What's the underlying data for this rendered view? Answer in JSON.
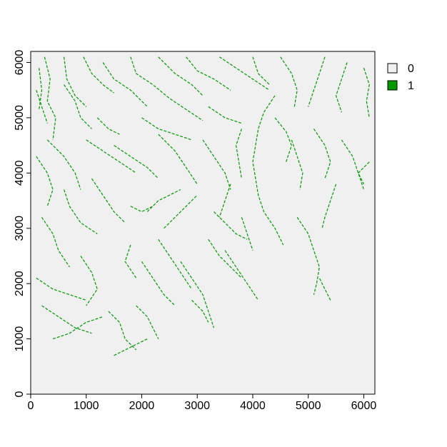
{
  "chart_data": {
    "type": "heatmap",
    "title": "",
    "xlabel": "",
    "ylabel": "",
    "xlim": [
      0,
      6200
    ],
    "ylim": [
      0,
      6200
    ],
    "x_ticks": [
      0,
      1000,
      2000,
      3000,
      4000,
      5000,
      6000
    ],
    "y_ticks": [
      0,
      1000,
      2000,
      3000,
      4000,
      5000,
      6000
    ],
    "x_tick_labels": [
      "0",
      "1000",
      "2000",
      "3000",
      "4000",
      "5000",
      "6000"
    ],
    "y_tick_labels": [
      "0",
      "1000",
      "2000",
      "3000",
      "4000",
      "5000",
      "6000"
    ],
    "background_color": "#f0f0f0",
    "legend": {
      "placement": "top-right",
      "entries": [
        {
          "label": "0",
          "color": "#f0f0f0"
        },
        {
          "label": "1",
          "color": "#009900"
        }
      ]
    },
    "streams": [
      [
        [
          250,
          6100
        ],
        [
          350,
          5700
        ],
        [
          300,
          5300
        ],
        [
          450,
          5000
        ],
        [
          400,
          4600
        ]
      ],
      [
        [
          150,
          5900
        ],
        [
          200,
          5500
        ],
        [
          150,
          5150
        ]
      ],
      [
        [
          600,
          6100
        ],
        [
          650,
          5700
        ],
        [
          800,
          5400
        ],
        [
          1000,
          5200
        ]
      ],
      [
        [
          950,
          6100
        ],
        [
          1100,
          5800
        ],
        [
          1300,
          5600
        ],
        [
          1500,
          5450
        ]
      ],
      [
        [
          1300,
          6000
        ],
        [
          1500,
          5700
        ],
        [
          1800,
          5500
        ],
        [
          2100,
          5200
        ]
      ],
      [
        [
          1800,
          6100
        ],
        [
          1900,
          5800
        ],
        [
          2200,
          5600
        ],
        [
          2500,
          5350
        ],
        [
          2800,
          5150
        ],
        [
          3100,
          4950
        ]
      ],
      [
        [
          2300,
          6100
        ],
        [
          2600,
          5800
        ],
        [
          2900,
          5600
        ],
        [
          3100,
          5400
        ]
      ],
      [
        [
          2800,
          6100
        ],
        [
          3000,
          5850
        ],
        [
          3300,
          5700
        ],
        [
          3600,
          5500
        ]
      ],
      [
        [
          3400,
          6100
        ],
        [
          3700,
          5900
        ],
        [
          4000,
          5700
        ],
        [
          4300,
          5500
        ]
      ],
      [
        [
          4000,
          6100
        ],
        [
          4100,
          5800
        ],
        [
          4300,
          5600
        ]
      ],
      [
        [
          4500,
          6100
        ],
        [
          4700,
          5800
        ],
        [
          4800,
          5500
        ],
        [
          4750,
          5200
        ]
      ],
      [
        [
          5300,
          6100
        ],
        [
          5200,
          5800
        ],
        [
          5100,
          5500
        ],
        [
          5000,
          5200
        ]
      ],
      [
        [
          5700,
          6000
        ],
        [
          5600,
          5700
        ],
        [
          5500,
          5400
        ],
        [
          5600,
          5100
        ]
      ],
      [
        [
          6000,
          5900
        ],
        [
          6100,
          5600
        ],
        [
          6050,
          5300
        ],
        [
          6100,
          5000
        ]
      ],
      [
        [
          4400,
          5400
        ],
        [
          4200,
          5100
        ],
        [
          4100,
          4800
        ],
        [
          4050,
          4500
        ],
        [
          4000,
          4200
        ],
        [
          4050,
          3900
        ],
        [
          4100,
          3600
        ],
        [
          4200,
          3300
        ],
        [
          4400,
          3000
        ],
        [
          4550,
          2700
        ]
      ],
      [
        [
          4400,
          5000
        ],
        [
          4600,
          4750
        ],
        [
          4700,
          4500
        ],
        [
          4600,
          4200
        ]
      ],
      [
        [
          4700,
          4600
        ],
        [
          4800,
          4300
        ],
        [
          4900,
          4000
        ],
        [
          4850,
          3700
        ]
      ],
      [
        [
          5100,
          4800
        ],
        [
          5300,
          4500
        ],
        [
          5400,
          4200
        ],
        [
          5300,
          3900
        ]
      ],
      [
        [
          5600,
          4600
        ],
        [
          5800,
          4300
        ],
        [
          5900,
          4000
        ],
        [
          6000,
          3700
        ]
      ],
      [
        [
          5500,
          3800
        ],
        [
          5400,
          3500
        ],
        [
          5300,
          3200
        ],
        [
          5250,
          3000
        ]
      ],
      [
        [
          4800,
          3200
        ],
        [
          5000,
          2900
        ],
        [
          5100,
          2600
        ],
        [
          5200,
          2300
        ],
        [
          5150,
          2000
        ],
        [
          5100,
          1800
        ]
      ],
      [
        [
          5400,
          1700
        ],
        [
          5300,
          1900
        ],
        [
          5200,
          2100
        ]
      ],
      [
        [
          300,
          4600
        ],
        [
          600,
          4300
        ],
        [
          800,
          4000
        ],
        [
          900,
          3700
        ]
      ],
      [
        [
          100,
          4300
        ],
        [
          300,
          4000
        ],
        [
          400,
          3700
        ],
        [
          300,
          3400
        ]
      ],
      [
        [
          600,
          3700
        ],
        [
          700,
          3400
        ],
        [
          900,
          3100
        ],
        [
          1200,
          2900
        ]
      ],
      [
        [
          200,
          3200
        ],
        [
          400,
          2900
        ],
        [
          500,
          2600
        ],
        [
          700,
          2300
        ]
      ],
      [
        [
          1100,
          3900
        ],
        [
          1300,
          3600
        ],
        [
          1500,
          3300
        ],
        [
          1700,
          3100
        ]
      ],
      [
        [
          1000,
          4600
        ],
        [
          1300,
          4400
        ],
        [
          1600,
          4200
        ],
        [
          1900,
          4000
        ]
      ],
      [
        [
          1500,
          4500
        ],
        [
          1800,
          4300
        ],
        [
          2100,
          4100
        ],
        [
          2300,
          3900
        ]
      ],
      [
        [
          2300,
          4700
        ],
        [
          2600,
          4400
        ],
        [
          2800,
          4100
        ],
        [
          3000,
          3800
        ]
      ],
      [
        [
          3100,
          4600
        ],
        [
          3300,
          4300
        ],
        [
          3500,
          4000
        ],
        [
          3600,
          3700
        ]
      ],
      [
        [
          3800,
          4800
        ],
        [
          3700,
          4500
        ],
        [
          3750,
          4200
        ],
        [
          3800,
          3900
        ]
      ],
      [
        [
          100,
          2100
        ],
        [
          400,
          1900
        ],
        [
          700,
          1800
        ],
        [
          1000,
          1700
        ]
      ],
      [
        [
          200,
          1600
        ],
        [
          500,
          1400
        ],
        [
          800,
          1200
        ],
        [
          1100,
          1100
        ]
      ],
      [
        [
          400,
          1000
        ],
        [
          700,
          1100
        ],
        [
          1000,
          1300
        ],
        [
          1300,
          1400
        ]
      ],
      [
        [
          1400,
          1500
        ],
        [
          1600,
          1300
        ],
        [
          1700,
          1000
        ],
        [
          1900,
          800
        ]
      ],
      [
        [
          1500,
          700
        ],
        [
          1700,
          800
        ],
        [
          1900,
          900
        ],
        [
          2100,
          1000
        ]
      ],
      [
        [
          1900,
          1600
        ],
        [
          2100,
          1400
        ],
        [
          2200,
          1200
        ],
        [
          2300,
          1000
        ]
      ],
      [
        [
          2000,
          2400
        ],
        [
          2200,
          2100
        ],
        [
          2400,
          1800
        ],
        [
          2600,
          1600
        ]
      ],
      [
        [
          2300,
          2800
        ],
        [
          2500,
          2500
        ],
        [
          2700,
          2200
        ],
        [
          2900,
          1900
        ]
      ],
      [
        [
          2700,
          2400
        ],
        [
          2900,
          2100
        ],
        [
          3100,
          1800
        ],
        [
          3200,
          1500
        ],
        [
          3300,
          1200
        ]
      ],
      [
        [
          2900,
          1700
        ],
        [
          3100,
          1500
        ],
        [
          3200,
          1300
        ]
      ],
      [
        [
          3200,
          2800
        ],
        [
          3400,
          2500
        ],
        [
          3600,
          2300
        ],
        [
          3800,
          2100
        ]
      ],
      [
        [
          3500,
          2600
        ],
        [
          3700,
          2300
        ],
        [
          3900,
          2000
        ],
        [
          4100,
          1700
        ]
      ],
      [
        [
          3800,
          3200
        ],
        [
          3900,
          2900
        ],
        [
          4000,
          2600
        ]
      ],
      [
        [
          1800,
          2700
        ],
        [
          1700,
          2400
        ],
        [
          1900,
          2100
        ]
      ],
      [
        [
          900,
          2500
        ],
        [
          1100,
          2200
        ],
        [
          1200,
          1900
        ],
        [
          1000,
          1600
        ]
      ],
      [
        [
          2400,
          3000
        ],
        [
          2600,
          3200
        ],
        [
          2800,
          3400
        ],
        [
          3000,
          3600
        ]
      ],
      [
        [
          2100,
          3300
        ],
        [
          2300,
          3500
        ],
        [
          2500,
          3600
        ],
        [
          2700,
          3700
        ]
      ],
      [
        [
          1800,
          3400
        ],
        [
          2000,
          3300
        ],
        [
          2200,
          3400
        ]
      ],
      [
        [
          3300,
          3300
        ],
        [
          3500,
          3100
        ],
        [
          3700,
          2900
        ],
        [
          3900,
          2800
        ]
      ],
      [
        [
          1200,
          5000
        ],
        [
          1400,
          4800
        ],
        [
          1600,
          4700
        ]
      ],
      [
        [
          2000,
          5000
        ],
        [
          2300,
          4800
        ],
        [
          2600,
          4700
        ],
        [
          2900,
          4600
        ]
      ],
      [
        [
          3200,
          5200
        ],
        [
          3500,
          5000
        ],
        [
          3800,
          4900
        ]
      ],
      [
        [
          600,
          5600
        ],
        [
          800,
          5300
        ],
        [
          900,
          5000
        ],
        [
          1100,
          4800
        ]
      ],
      [
        [
          6100,
          4200
        ],
        [
          5900,
          4000
        ],
        [
          6000,
          3800
        ]
      ],
      [
        [
          100,
          5500
        ],
        [
          200,
          5200
        ],
        [
          300,
          4900
        ]
      ],
      [
        [
          3600,
          3800
        ],
        [
          3500,
          3500
        ],
        [
          3400,
          3200
        ]
      ]
    ]
  }
}
